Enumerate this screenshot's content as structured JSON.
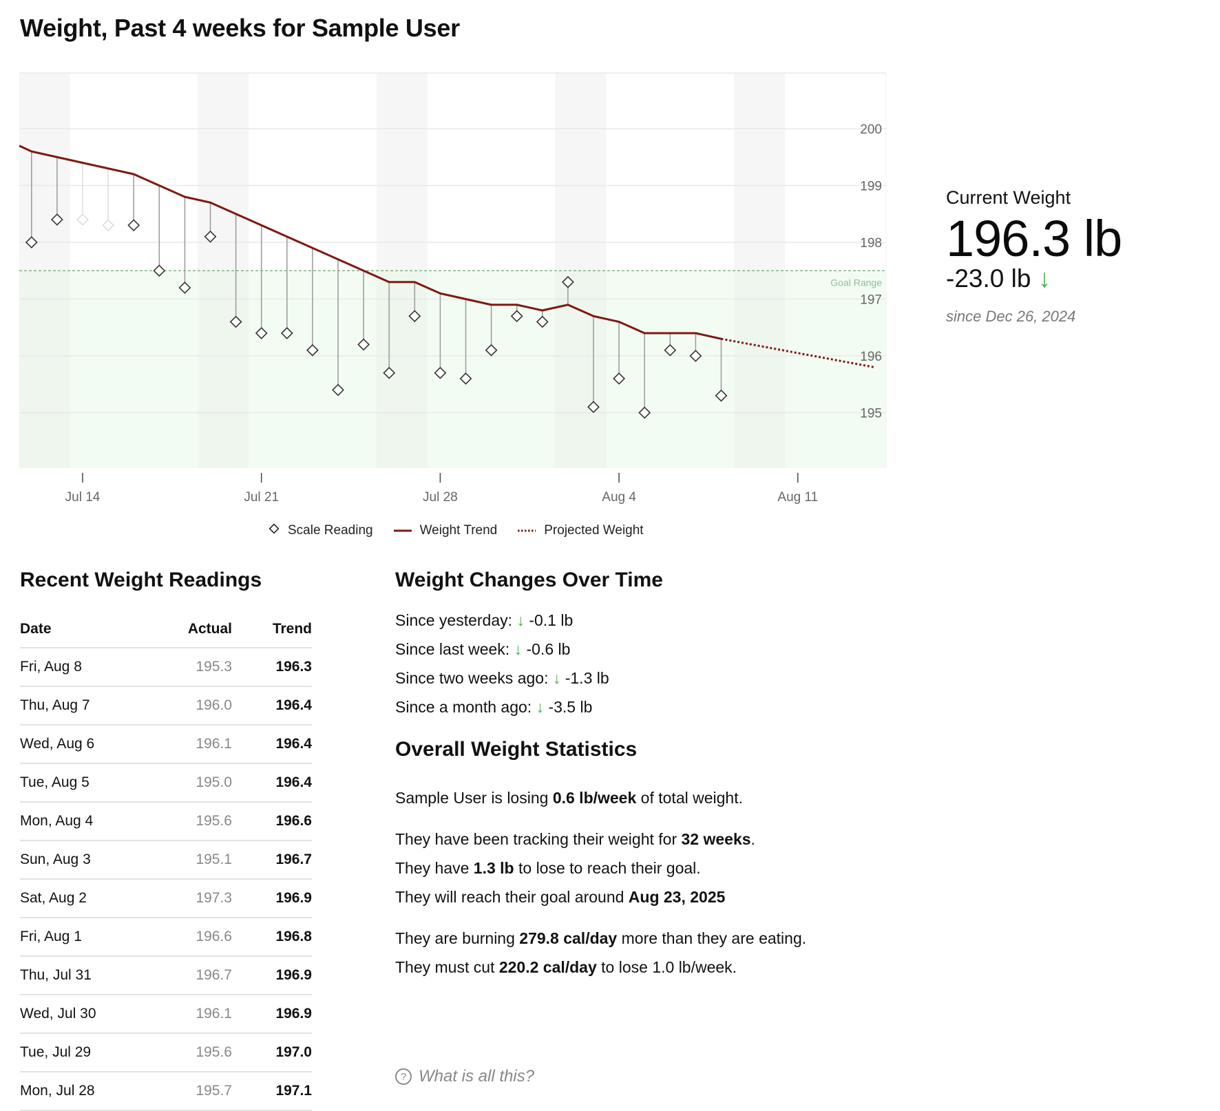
{
  "title": "Weight, Past 4 weeks for Sample User",
  "colors": {
    "trend": "#7d1a12",
    "goal_fill": "#f3fcf3",
    "goal_line": "#6aa86a",
    "weekend": "#f6f6f6",
    "weekend_goal": "#eef6ee",
    "accent_down": "#4caf50",
    "grid": "#e8e8e8"
  },
  "chart_data": {
    "type": "line",
    "title": "Weight, Past 4 weeks for Sample User",
    "xlabel": "",
    "ylabel": "",
    "ylim": [
      194,
      201
    ],
    "yticks": [
      195,
      196,
      197,
      198,
      199,
      200
    ],
    "xticks": [
      "Jul 14",
      "Jul 21",
      "Jul 28",
      "Aug 4",
      "Aug 11"
    ],
    "grid": true,
    "legend_position": "bottom",
    "goal": {
      "label": "Goal Range",
      "upper": 197.5
    },
    "dates": [
      "Jul 12",
      "Jul 13",
      "Jul 14",
      "Jul 15",
      "Jul 16",
      "Jul 17",
      "Jul 18",
      "Jul 19",
      "Jul 20",
      "Jul 21",
      "Jul 22",
      "Jul 23",
      "Jul 24",
      "Jul 25",
      "Jul 26",
      "Jul 27",
      "Jul 28",
      "Jul 29",
      "Jul 30",
      "Jul 31",
      "Aug 1",
      "Aug 2",
      "Aug 3",
      "Aug 4",
      "Aug 5",
      "Aug 6",
      "Aug 7",
      "Aug 8"
    ],
    "series": [
      {
        "name": "Scale Reading",
        "marker": "diamond",
        "values": [
          198.0,
          198.4,
          198.4,
          198.3,
          198.3,
          197.5,
          197.2,
          198.1,
          196.6,
          196.4,
          196.4,
          196.1,
          195.4,
          196.2,
          195.7,
          196.7,
          195.7,
          195.6,
          196.1,
          196.7,
          196.6,
          197.3,
          195.1,
          195.6,
          195.0,
          196.1,
          196.0,
          195.3
        ],
        "faded": [
          false,
          false,
          true,
          true,
          false,
          false,
          false,
          false,
          false,
          false,
          false,
          false,
          false,
          false,
          false,
          false,
          false,
          false,
          false,
          false,
          false,
          false,
          false,
          false,
          false,
          false,
          false,
          false
        ]
      },
      {
        "name": "Weight Trend",
        "style": "solid",
        "values": [
          199.6,
          199.5,
          199.4,
          199.3,
          199.2,
          199.0,
          198.8,
          198.7,
          198.5,
          198.3,
          198.1,
          197.9,
          197.7,
          197.5,
          197.3,
          197.3,
          197.1,
          197.0,
          196.9,
          196.9,
          196.8,
          196.9,
          196.7,
          196.6,
          196.4,
          196.4,
          196.4,
          196.3
        ]
      },
      {
        "name": "Projected Weight",
        "style": "dotted",
        "x": [
          "Aug 8",
          "Aug 14"
        ],
        "values": [
          196.3,
          195.8
        ]
      }
    ],
    "trend_start_value": 199.7
  },
  "legend": [
    {
      "label": "Scale Reading"
    },
    {
      "label": "Weight Trend"
    },
    {
      "label": "Projected Weight"
    }
  ],
  "current": {
    "label": "Current Weight",
    "value": "196.3 lb",
    "delta": "-23.0 lb",
    "delta_arrow": "↓",
    "since": "since Dec 26, 2024"
  },
  "readings": {
    "title": "Recent Weight Readings",
    "columns": [
      "Date",
      "Actual",
      "Trend"
    ],
    "rows": [
      {
        "date": "Fri, Aug 8",
        "actual": "195.3",
        "trend": "196.3"
      },
      {
        "date": "Thu, Aug 7",
        "actual": "196.0",
        "trend": "196.4"
      },
      {
        "date": "Wed, Aug 6",
        "actual": "196.1",
        "trend": "196.4"
      },
      {
        "date": "Tue, Aug 5",
        "actual": "195.0",
        "trend": "196.4"
      },
      {
        "date": "Mon, Aug 4",
        "actual": "195.6",
        "trend": "196.6"
      },
      {
        "date": "Sun, Aug 3",
        "actual": "195.1",
        "trend": "196.7"
      },
      {
        "date": "Sat, Aug 2",
        "actual": "197.3",
        "trend": "196.9"
      },
      {
        "date": "Fri, Aug 1",
        "actual": "196.6",
        "trend": "196.8"
      },
      {
        "date": "Thu, Jul 31",
        "actual": "196.7",
        "trend": "196.9"
      },
      {
        "date": "Wed, Jul 30",
        "actual": "196.1",
        "trend": "196.9"
      },
      {
        "date": "Tue, Jul 29",
        "actual": "195.6",
        "trend": "197.0"
      },
      {
        "date": "Mon, Jul 28",
        "actual": "195.7",
        "trend": "197.1"
      }
    ]
  },
  "changes": {
    "title": "Weight Changes Over Time",
    "items": [
      {
        "label": "Since yesterday:",
        "arrow": "↓",
        "value": "-0.1 lb"
      },
      {
        "label": "Since last week:",
        "arrow": "↓",
        "value": "-0.6 lb"
      },
      {
        "label": "Since two weeks ago:",
        "arrow": "↓",
        "value": "-1.3 lb"
      },
      {
        "label": "Since a month ago:",
        "arrow": "↓",
        "value": "-3.5 lb"
      }
    ]
  },
  "stats": {
    "title": "Overall Weight Statistics",
    "losing": {
      "pre": "Sample User is losing ",
      "bold": "0.6 lb/week",
      "post": " of total weight."
    },
    "tracking": {
      "pre": "They have been tracking their weight for ",
      "bold": "32 weeks",
      "post": "."
    },
    "to_lose": {
      "pre": "They have ",
      "bold": "1.3 lb",
      "post": " to lose to reach their goal."
    },
    "reach": {
      "pre": "They will reach their goal around ",
      "bold": "Aug 23, 2025",
      "post": ""
    },
    "burning": {
      "pre": "They are burning ",
      "bold": "279.8 cal/day",
      "post": " more than they are eating."
    },
    "cut": {
      "pre": "They must cut ",
      "bold": "220.2 cal/day",
      "post": " to lose 1.0 lb/week."
    }
  },
  "help": {
    "icon": "?",
    "label": "What is all this?"
  }
}
